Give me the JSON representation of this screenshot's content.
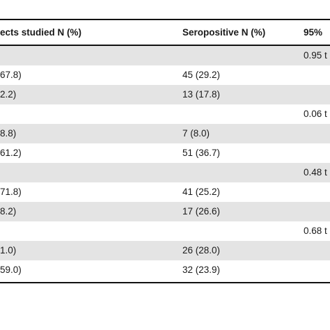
{
  "table": {
    "headers": {
      "col1": "ects studied N (%)",
      "col2": "Seropositive N (%)",
      "col3": "95%"
    },
    "rows": [
      {
        "shaded": true,
        "col1": "",
        "col2": "",
        "col3": "0.95 t"
      },
      {
        "shaded": false,
        "col1": "67.8)",
        "col2": "45 (29.2)",
        "col3": ""
      },
      {
        "shaded": true,
        "col1": "2.2)",
        "col2": "13 (17.8)",
        "col3": ""
      },
      {
        "shaded": false,
        "col1": "",
        "col2": "",
        "col3": "0.06 t"
      },
      {
        "shaded": true,
        "col1": "8.8)",
        "col2": "7 (8.0)",
        "col3": ""
      },
      {
        "shaded": false,
        "col1": "61.2)",
        "col2": "51 (36.7)",
        "col3": ""
      },
      {
        "shaded": true,
        "col1": "",
        "col2": "",
        "col3": "0.48 t"
      },
      {
        "shaded": false,
        "col1": "71.8)",
        "col2": "41 (25.2)",
        "col3": ""
      },
      {
        "shaded": true,
        "col1": "8.2)",
        "col2": "17 (26.6)",
        "col3": ""
      },
      {
        "shaded": false,
        "col1": "",
        "col2": "",
        "col3": "0.68 t"
      },
      {
        "shaded": true,
        "col1": "1.0)",
        "col2": "26 (28.0)",
        "col3": ""
      },
      {
        "shaded": false,
        "col1": "59.0)",
        "col2": "32 (23.9)",
        "col3": ""
      }
    ]
  }
}
